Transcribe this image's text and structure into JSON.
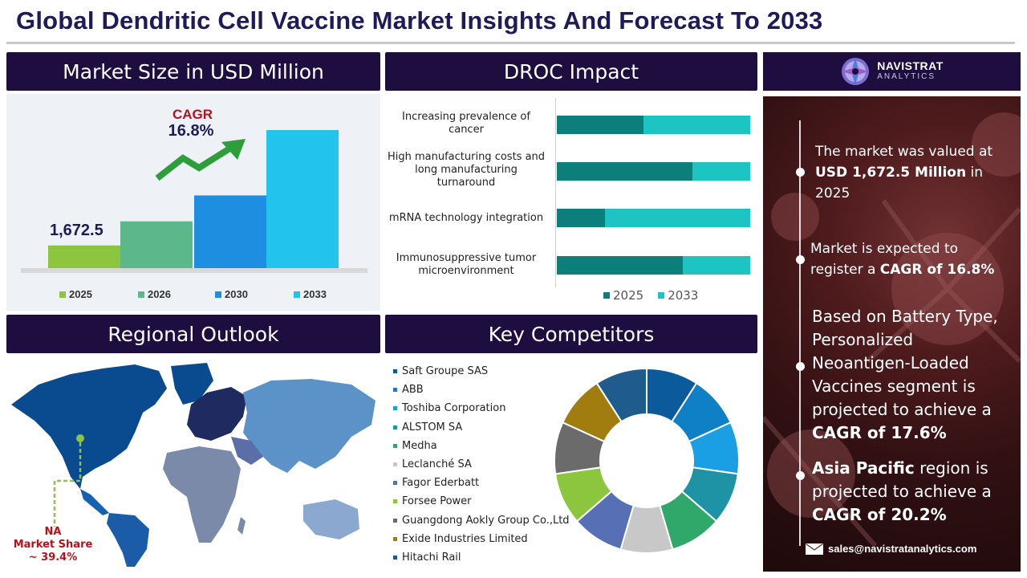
{
  "title": "Global Dendritic Cell Vaccine Market Insights And Forecast To 2033",
  "market_size": {
    "heading": "Market Size in USD Million",
    "cagr_label": "CAGR",
    "cagr_value": "16.8%",
    "base_value_label": "1,672.5",
    "colors": {
      "accent_red": "#b5121b",
      "arrow_green": "#2e9e3a"
    }
  },
  "chart_data": [
    {
      "type": "bar",
      "categories": [
        "2025",
        "2026",
        "2030",
        "2033"
      ],
      "values": [
        1672.5,
        3450,
        5360,
        10180
      ],
      "value_labels": [
        "1,672.5",
        "",
        "",
        ""
      ],
      "colors": [
        "#8cc63f",
        "#5cb88a",
        "#1e8fe0",
        "#22c4ee"
      ],
      "title": "",
      "xlabel": "",
      "ylabel": ""
    },
    {
      "type": "bar",
      "orientation": "horizontal",
      "stacked": true,
      "categories": [
        "Increasing prevalence of cancer",
        "High manufacturing costs and long manufacturing turnaround",
        "mRNA technology integration",
        "Immunosuppressive tumor microenvironment"
      ],
      "series": [
        {
          "name": "2025",
          "values": [
            0.45,
            0.7,
            0.25,
            0.65
          ],
          "color": "#0d7f7a"
        },
        {
          "name": "2033",
          "values": [
            0.55,
            0.3,
            0.75,
            0.35
          ],
          "color": "#1cc4c2"
        }
      ],
      "xlim": [
        0,
        1
      ]
    },
    {
      "type": "pie",
      "donut": true,
      "labels": [
        "Saft Groupe SAS",
        "ABB",
        "Toshiba Corporation",
        "ALSTOM SA",
        "Medha",
        "Leclanché SA",
        "Fagor Ederbatt",
        "Forsee Power",
        "Guangdong Aokly Group Co.,Ltd",
        "Exide Industries Limited",
        "Hitachi Rail"
      ],
      "values": [
        1,
        1,
        1,
        1,
        1,
        1,
        1,
        1,
        1,
        1,
        1
      ],
      "colors": [
        "#0b5a9c",
        "#0f7fc6",
        "#1a9ee4",
        "#1e93a6",
        "#2fa86a",
        "#c8c8c8",
        "#5770b5",
        "#8cc63f",
        "#6b6b6b",
        "#a07d0e",
        "#1f5b8c"
      ]
    }
  ],
  "droc": {
    "heading": "DROC Impact",
    "legend": [
      "2025",
      "2033"
    ]
  },
  "regional": {
    "heading": "Regional Outlook",
    "callout_region": "NA",
    "callout_label": "Market Share",
    "callout_value": "~ 39.4%"
  },
  "competitors": {
    "heading": "Key Competitors"
  },
  "brand": {
    "name": "NAVISTRAT",
    "sub": "ANALYTICS"
  },
  "insights": {
    "i1_pre": "The market was valued at",
    "i1_bold": "USD 1,672.5 Million",
    "i1_post": "in 2025",
    "i2_pre": "Market is expected to register a",
    "i2_bold": "CAGR of 16.8%",
    "i3_pre": "Based on Battery Type, Personalized Neoantigen-Loaded Vaccines segment is projected to achieve a",
    "i3_bold": "CAGR of 17.6%",
    "i4_bold1": "Asia Pacific",
    "i4_mid": "region is projected to achieve a",
    "i4_bold2": "CAGR of 20.2%",
    "email": "sales@navistratanalytics.com"
  }
}
